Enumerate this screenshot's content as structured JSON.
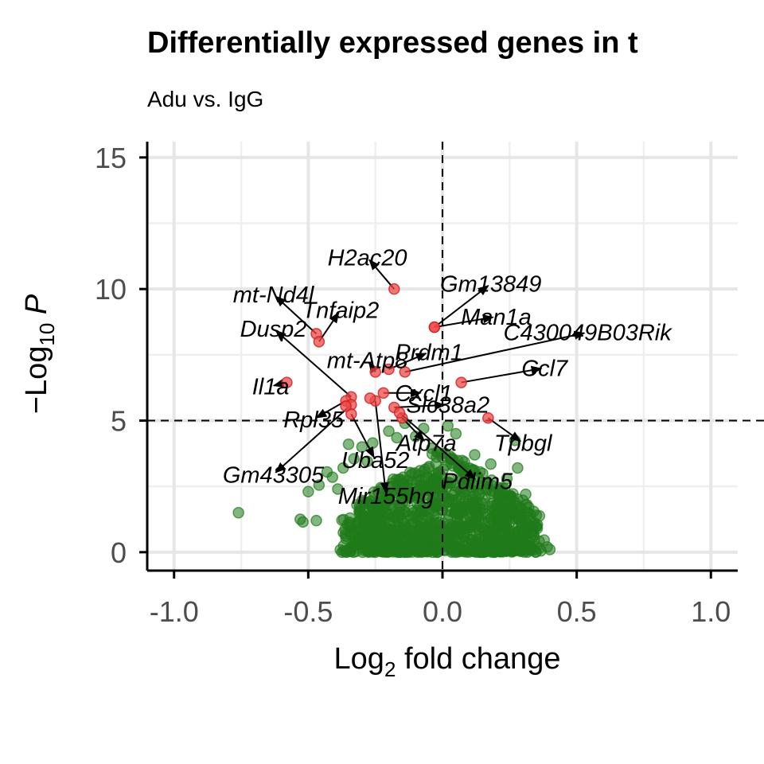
{
  "chart_data": {
    "type": "scatter",
    "title": "Differentially expressed genes in t",
    "subtitle": "Adu vs. IgG",
    "xlabel": {
      "prefix": "Log",
      "sub": "2",
      "suffix": " fold change"
    },
    "ylabel": {
      "prefix": "−Log",
      "sub": "10",
      "suffix": " P"
    },
    "xlim": [
      -1.1,
      1.1
    ],
    "ylim": [
      -0.7,
      15.6
    ],
    "x_ticks": [
      -1.0,
      -0.5,
      0.0,
      0.5,
      1.0
    ],
    "x_tick_labels": [
      "-1.0",
      "-0.5",
      "0.0",
      "0.5",
      "1.0"
    ],
    "y_ticks": [
      0,
      5,
      10,
      15
    ],
    "y_tick_labels": [
      "0",
      "5",
      "10",
      "15"
    ],
    "grid": true,
    "cutoffs": {
      "log2fc": 0,
      "neg_log10_p": 5
    },
    "colors": {
      "significant": "#f04a4a",
      "not_significant": "#1f7a1a"
    },
    "significant_points": [
      {
        "gene": "H2ac20",
        "x": -0.18,
        "y": 10.0
      },
      {
        "gene": "Gm13849",
        "x": -0.03,
        "y": 8.55
      },
      {
        "gene": "mt-Nd4l",
        "x": -0.47,
        "y": 8.3
      },
      {
        "gene": "Tnfaip2",
        "x": -0.46,
        "y": 8.0
      },
      {
        "gene": "Man1a",
        "x": -0.03,
        "y": 8.55
      },
      {
        "gene": "C430049B03Rik",
        "x": -0.14,
        "y": 6.85
      },
      {
        "gene": "Prdm1",
        "x": -0.2,
        "y": 6.95
      },
      {
        "gene": "mt-Atp8",
        "x": -0.25,
        "y": 6.85
      },
      {
        "gene": "Dusp2",
        "x": -0.34,
        "y": 5.9
      },
      {
        "gene": "Ccl7",
        "x": 0.07,
        "y": 6.45
      },
      {
        "gene": "Il1a",
        "x": -0.58,
        "y": 6.45
      },
      {
        "gene": "Cxcl1",
        "x": -0.22,
        "y": 6.05
      },
      {
        "gene": "Slc38a2",
        "x": -0.18,
        "y": 5.5
      },
      {
        "gene": "Rpl35",
        "x": -0.36,
        "y": 5.75
      },
      {
        "gene": "Tpbgl",
        "x": 0.17,
        "y": 5.1
      },
      {
        "gene": "Gm43305",
        "x": -0.34,
        "y": 5.6
      },
      {
        "gene": "Uba52",
        "x": -0.34,
        "y": 5.25
      },
      {
        "gene": "Atp7a",
        "x": -0.15,
        "y": 5.1
      },
      {
        "gene": "Pdlim5",
        "x": -0.16,
        "y": 5.3
      },
      {
        "gene": "Mir155hg",
        "x": -0.25,
        "y": 5.75
      },
      {
        "gene": "",
        "x": -0.27,
        "y": 5.85
      },
      {
        "gene": "",
        "x": -0.36,
        "y": 5.55
      }
    ],
    "nonsignificant_outliers": [
      {
        "x": -0.76,
        "y": 1.5
      },
      {
        "x": -0.53,
        "y": 1.25
      },
      {
        "x": -0.52,
        "y": 1.15
      },
      {
        "x": -0.47,
        "y": 1.2
      },
      {
        "x": -0.5,
        "y": 2.3
      },
      {
        "x": -0.46,
        "y": 2.55
      },
      {
        "x": -0.43,
        "y": 3.05
      },
      {
        "x": -0.41,
        "y": 2.85
      },
      {
        "x": -0.39,
        "y": 2.4
      },
      {
        "x": -0.37,
        "y": 3.2
      },
      {
        "x": -0.35,
        "y": 4.1
      },
      {
        "x": -0.33,
        "y": 3.55
      },
      {
        "x": -0.3,
        "y": 4.0
      },
      {
        "x": -0.28,
        "y": 3.45
      },
      {
        "x": -0.26,
        "y": 4.15
      },
      {
        "x": -0.24,
        "y": 2.3
      },
      {
        "x": -0.2,
        "y": 4.6
      },
      {
        "x": -0.17,
        "y": 4.35
      },
      {
        "x": -0.14,
        "y": 4.9
      },
      {
        "x": -0.1,
        "y": 4.4
      },
      {
        "x": -0.07,
        "y": 4.7
      },
      {
        "x": -0.04,
        "y": 3.95
      },
      {
        "x": 0.02,
        "y": 4.8
      },
      {
        "x": 0.05,
        "y": 4.5
      },
      {
        "x": 0.08,
        "y": 3.25
      },
      {
        "x": 0.12,
        "y": 3.7
      },
      {
        "x": 0.18,
        "y": 3.35
      },
      {
        "x": 0.24,
        "y": 2.8
      },
      {
        "x": 0.27,
        "y": 4.25
      },
      {
        "x": 0.28,
        "y": 3.2
      },
      {
        "x": 0.31,
        "y": 2.2
      },
      {
        "x": 0.34,
        "y": 1.55
      },
      {
        "x": 0.35,
        "y": 1.4
      },
      {
        "x": 0.39,
        "y": 0.2
      },
      {
        "x": 0.4,
        "y": 0.1
      },
      {
        "x": 0.33,
        "y": 0.8
      }
    ]
  },
  "labels": [
    {
      "gene": "H2ac20",
      "lx": -0.28,
      "ly": 11.2
    },
    {
      "gene": "Gm13849",
      "lx": 0.18,
      "ly": 10.2
    },
    {
      "gene": "mt-Nd4l",
      "lx": -0.63,
      "ly": 9.8
    },
    {
      "gene": "Tnfaip2",
      "lx": -0.38,
      "ly": 9.2
    },
    {
      "gene": "Man1a",
      "lx": 0.2,
      "ly": 8.95
    },
    {
      "gene": "C430049B03Rik",
      "lx": 0.54,
      "ly": 8.35
    },
    {
      "gene": "Prdm1",
      "lx": -0.05,
      "ly": 7.6
    },
    {
      "gene": "mt-Atp8",
      "lx": -0.28,
      "ly": 7.3
    },
    {
      "gene": "Dusp2",
      "lx": -0.63,
      "ly": 8.5
    },
    {
      "gene": "Ccl7",
      "lx": 0.38,
      "ly": 7.0
    },
    {
      "gene": "Il1a",
      "lx": -0.64,
      "ly": 6.3
    },
    {
      "gene": "Cxcl1",
      "lx": -0.07,
      "ly": 6.05
    },
    {
      "gene": "Slc38a2",
      "lx": 0.02,
      "ly": 5.6
    },
    {
      "gene": "Rpl35",
      "lx": -0.48,
      "ly": 5.05
    },
    {
      "gene": "Tpbgl",
      "lx": 0.3,
      "ly": 4.15
    },
    {
      "gene": "Gm43305",
      "lx": -0.63,
      "ly": 2.95
    },
    {
      "gene": "Uba52",
      "lx": -0.25,
      "ly": 3.5
    },
    {
      "gene": "Atp7a",
      "lx": -0.06,
      "ly": 4.15
    },
    {
      "gene": "Pdlim5",
      "lx": 0.13,
      "ly": 2.7
    },
    {
      "gene": "Mir155hg",
      "lx": -0.21,
      "ly": 2.15
    }
  ]
}
